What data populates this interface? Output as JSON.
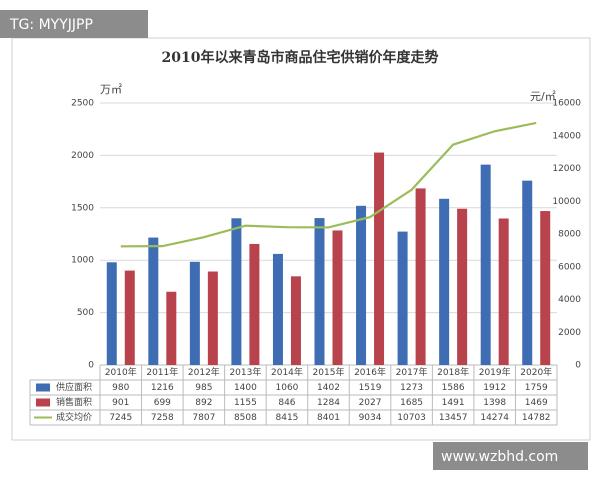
{
  "overlay_top": "TG: MYYJJPP",
  "overlay_bottom": "www.wzbhd.com",
  "chart_data": {
    "type": "bar",
    "title": "2010年以来青岛市商品住宅供销价年度走势",
    "y_label": "万㎡",
    "y2_label": "元/㎡",
    "categories": [
      "2010年",
      "2011年",
      "2012年",
      "2013年",
      "2014年",
      "2015年",
      "2016年",
      "2017年",
      "2018年",
      "2019年",
      "2020年"
    ],
    "series": [
      {
        "name": "供应面积",
        "type": "bar",
        "color": "#3f6db4",
        "values": [
          980,
          1216,
          985,
          1400,
          1060,
          1402,
          1519,
          1273,
          1586,
          1912,
          1759
        ]
      },
      {
        "name": "销售面积",
        "type": "bar",
        "color": "#b8434c",
        "values": [
          901,
          699,
          892,
          1155,
          846,
          1284,
          2027,
          1685,
          1491,
          1398,
          1469
        ]
      },
      {
        "name": "成交均价",
        "type": "line",
        "axis": "y2",
        "color": "#9cbc5a",
        "values": [
          7245,
          7258,
          7807,
          8508,
          8415,
          8401,
          9034,
          10703,
          13457,
          14274,
          14782
        ]
      }
    ],
    "ylim": [
      0,
      2500
    ],
    "yticks": [
      0,
      500,
      1000,
      1500,
      2000,
      2500
    ],
    "y2lim": [
      0,
      16000
    ],
    "y2ticks": [
      0,
      2000,
      4000,
      6000,
      8000,
      10000,
      12000,
      14000,
      16000
    ],
    "grid": true
  }
}
